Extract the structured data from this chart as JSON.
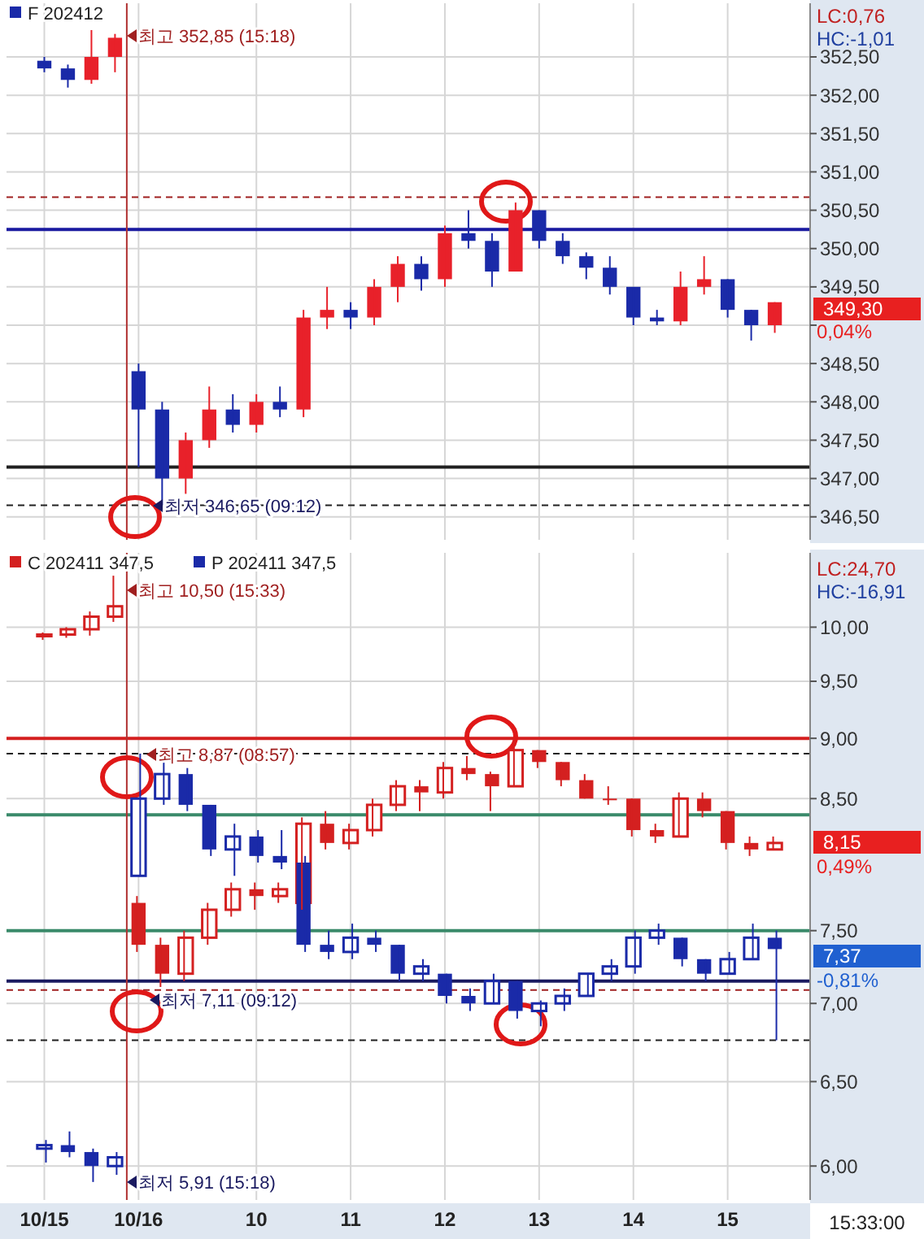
{
  "chart_data": [
    {
      "type": "candlestick",
      "categories": [
        "10/15",
        null,
        null,
        null,
        "10/16",
        null,
        null,
        null,
        null,
        "10",
        null,
        null,
        null,
        "11",
        null,
        null,
        null,
        "12",
        null,
        null,
        null,
        "13",
        null,
        null,
        null,
        "14",
        null,
        null,
        null,
        "15",
        null,
        null,
        null
      ],
      "series": [
        {
          "name": "F 202412",
          "color": "#1a2aa8",
          "colors": [
            "#1a2aa8",
            "#1a2aa8",
            "#e8212a",
            "#e8212a",
            "#1a2aa8",
            "#1a2aa8",
            "#e8212a",
            "#e8212a",
            "#1a2aa8",
            "#e8212a",
            "#1a2aa8",
            "#e8212a",
            "#e8212a",
            "#1a2aa8",
            "#e8212a",
            "#e8212a",
            "#1a2aa8",
            "#e8212a",
            "#1a2aa8",
            "#1a2aa8",
            "#e8212a",
            "#1a2aa8",
            "#1a2aa8",
            "#1a2aa8",
            "#1a2aa8",
            "#1a2aa8",
            "#1a2aa8",
            "#e8212a",
            "#e8212a",
            "#1a2aa8",
            "#1a2aa8",
            "#e8212a",
            null
          ],
          "ohlc": [
            [
              352.45,
              352.5,
              352.3,
              352.35
            ],
            [
              352.35,
              352.4,
              352.1,
              352.2
            ],
            [
              352.2,
              352.85,
              352.15,
              352.5
            ],
            [
              352.5,
              352.8,
              352.3,
              352.75
            ],
            [
              348.4,
              348.5,
              347.15,
              347.9
            ],
            [
              347.9,
              348.0,
              346.65,
              347.0
            ],
            [
              347.0,
              347.6,
              346.8,
              347.5
            ],
            [
              347.5,
              348.2,
              347.4,
              347.9
            ],
            [
              347.9,
              348.1,
              347.6,
              347.7
            ],
            [
              347.7,
              348.1,
              347.6,
              348.0
            ],
            [
              348.0,
              348.2,
              347.8,
              347.9
            ],
            [
              347.9,
              349.2,
              347.8,
              349.1
            ],
            [
              349.1,
              349.5,
              348.95,
              349.2
            ],
            [
              349.2,
              349.3,
              348.95,
              349.1
            ],
            [
              349.1,
              349.6,
              349.0,
              349.5
            ],
            [
              349.5,
              349.9,
              349.3,
              349.8
            ],
            [
              349.8,
              349.9,
              349.45,
              349.6
            ],
            [
              349.6,
              350.3,
              349.5,
              350.2
            ],
            [
              350.2,
              350.5,
              350.0,
              350.1
            ],
            [
              350.1,
              350.2,
              349.5,
              349.7
            ],
            [
              349.7,
              350.6,
              349.7,
              350.5
            ],
            [
              350.5,
              350.5,
              350.0,
              350.1
            ],
            [
              350.1,
              350.2,
              349.8,
              349.9
            ],
            [
              349.9,
              349.95,
              349.6,
              349.75
            ],
            [
              349.75,
              349.9,
              349.4,
              349.5
            ],
            [
              349.5,
              349.5,
              349.0,
              349.1
            ],
            [
              349.1,
              349.2,
              349.0,
              349.05
            ],
            [
              349.05,
              349.7,
              349.0,
              349.5
            ],
            [
              349.5,
              349.9,
              349.4,
              349.6
            ],
            [
              349.6,
              349.6,
              349.1,
              349.2
            ],
            [
              349.2,
              349.2,
              348.8,
              349.0
            ],
            [
              349.0,
              349.3,
              348.9,
              349.3
            ],
            null
          ]
        }
      ],
      "ylim": [
        346.2,
        353.2
      ],
      "yticks": [
        {
          "value": 346.5,
          "label": "346,50"
        },
        {
          "value": 347,
          "label": "347,00"
        },
        {
          "value": 347.5,
          "label": "347,50"
        },
        {
          "value": 348,
          "label": "348,00"
        },
        {
          "value": 348.5,
          "label": "348,50"
        },
        {
          "value": 349,
          "label": null
        },
        {
          "value": 349.5,
          "label": "349,50"
        },
        {
          "value": 350,
          "label": "350,00"
        },
        {
          "value": 350.5,
          "label": "350,50"
        },
        {
          "value": 351,
          "label": "351,00"
        },
        {
          "value": 351.5,
          "label": "351,50"
        },
        {
          "value": 352,
          "label": "352,00"
        },
        {
          "value": 352.5,
          "label": "352,50"
        }
      ],
      "tick_labels": "y",
      "grid": true,
      "legend": "top left",
      "ref_lines": [
        {
          "axis": "y",
          "value": 350.25,
          "color": "#1a1aa0"
        },
        {
          "axis": "y",
          "value": 350.67,
          "color": "#a02020",
          "line_style": "dashed"
        },
        {
          "axis": "y",
          "value": 347.15,
          "color": "#202020"
        },
        {
          "axis": "y",
          "value": 346.65,
          "color": "#202020",
          "line_style": "dashed"
        },
        {
          "axis": "x",
          "value": "10/16",
          "color": "#b03030"
        }
      ],
      "annotations": [
        "최고 352,85 (15:18)",
        "최저 346,65 (09:12)",
        "LC:0,76",
        "HC:-1,01",
        "349,30",
        "0,04%"
      ]
    },
    {
      "type": "candlestick",
      "categories": [
        "10/15",
        null,
        null,
        null,
        "10/16",
        null,
        null,
        null,
        null,
        "10",
        null,
        null,
        null,
        "11",
        null,
        null,
        null,
        "12",
        null,
        null,
        null,
        "13",
        null,
        null,
        null,
        "14",
        null,
        null,
        null,
        "15",
        null,
        null,
        null
      ],
      "series": [
        {
          "name": "C 202411 347,5",
          "color": "#d42020",
          "ohlc": [
            [
              9.92,
              9.95,
              9.88,
              9.93
            ],
            [
              9.93,
              10.0,
              9.9,
              9.98
            ],
            [
              9.98,
              10.15,
              9.92,
              10.1
            ],
            [
              10.1,
              10.5,
              10.05,
              10.2
            ],
            [
              7.7,
              7.75,
              7.35,
              7.4
            ],
            [
              7.4,
              7.45,
              7.11,
              7.2
            ],
            [
              7.2,
              7.5,
              7.15,
              7.45
            ],
            [
              7.45,
              7.7,
              7.4,
              7.65
            ],
            [
              7.65,
              7.85,
              7.6,
              7.8
            ],
            [
              7.8,
              7.85,
              7.65,
              7.75
            ],
            [
              7.75,
              7.85,
              7.7,
              7.8
            ],
            [
              7.7,
              8.35,
              7.65,
              8.3
            ],
            [
              8.3,
              8.4,
              8.1,
              8.15
            ],
            [
              8.15,
              8.3,
              8.1,
              8.25
            ],
            [
              8.25,
              8.5,
              8.2,
              8.45
            ],
            [
              8.45,
              8.65,
              8.4,
              8.6
            ],
            [
              8.6,
              8.65,
              8.4,
              8.55
            ],
            [
              8.55,
              8.8,
              8.5,
              8.75
            ],
            [
              8.75,
              8.85,
              8.65,
              8.7
            ],
            [
              8.7,
              8.72,
              8.4,
              8.6
            ],
            [
              8.6,
              9.0,
              8.6,
              8.9
            ],
            [
              8.9,
              8.9,
              8.75,
              8.8
            ],
            [
              8.8,
              8.8,
              8.6,
              8.65
            ],
            [
              8.65,
              8.7,
              8.5,
              8.5
            ],
            [
              8.5,
              8.6,
              8.45,
              8.5
            ],
            [
              8.5,
              8.5,
              8.2,
              8.25
            ],
            [
              8.25,
              8.3,
              8.15,
              8.2
            ],
            [
              8.2,
              8.55,
              8.2,
              8.5
            ],
            [
              8.5,
              8.55,
              8.35,
              8.4
            ],
            [
              8.4,
              8.4,
              8.1,
              8.15
            ],
            [
              8.15,
              8.2,
              8.05,
              8.1
            ],
            [
              8.1,
              8.2,
              8.1,
              8.15
            ],
            null
          ]
        },
        {
          "name": "P 202411 347,5",
          "color": "#1a2aa8",
          "ohlc": [
            [
              6.1,
              6.15,
              6.02,
              6.12
            ],
            [
              6.12,
              6.2,
              6.05,
              6.08
            ],
            [
              6.08,
              6.1,
              5.91,
              6.0
            ],
            [
              6.0,
              6.08,
              5.95,
              6.05
            ],
            [
              7.9,
              8.87,
              7.9,
              8.5
            ],
            [
              8.5,
              8.8,
              8.45,
              8.7
            ],
            [
              8.7,
              8.75,
              8.4,
              8.45
            ],
            [
              8.45,
              8.45,
              8.05,
              8.1
            ],
            [
              8.1,
              8.3,
              7.9,
              8.2
            ],
            [
              8.2,
              8.25,
              8.0,
              8.05
            ],
            [
              8.05,
              8.25,
              7.95,
              8.0
            ],
            [
              8.0,
              8.05,
              7.35,
              7.4
            ],
            [
              7.4,
              7.5,
              7.3,
              7.35
            ],
            [
              7.35,
              7.55,
              7.3,
              7.45
            ],
            [
              7.45,
              7.5,
              7.35,
              7.4
            ],
            [
              7.4,
              7.4,
              7.15,
              7.2
            ],
            [
              7.2,
              7.3,
              7.15,
              7.25
            ],
            [
              7.2,
              7.2,
              7.0,
              7.05
            ],
            [
              7.05,
              7.1,
              6.95,
              7.0
            ],
            [
              7.0,
              7.2,
              7.0,
              7.15
            ],
            [
              7.15,
              7.15,
              6.9,
              6.95
            ],
            [
              6.95,
              7.02,
              6.85,
              7.0
            ],
            [
              7.0,
              7.1,
              6.95,
              7.05
            ],
            [
              7.05,
              7.2,
              7.05,
              7.2
            ],
            [
              7.2,
              7.3,
              7.15,
              7.25
            ],
            [
              7.25,
              7.5,
              7.2,
              7.45
            ],
            [
              7.45,
              7.55,
              7.4,
              7.5
            ],
            [
              7.45,
              7.45,
              7.25,
              7.3
            ],
            [
              7.3,
              7.3,
              7.15,
              7.2
            ],
            [
              7.2,
              7.35,
              7.2,
              7.3
            ],
            [
              7.3,
              7.55,
              7.3,
              7.45
            ],
            [
              7.45,
              7.5,
              6.76,
              7.37
            ],
            null
          ]
        }
      ],
      "ylim": [
        5.81,
        10.73
      ],
      "log": true,
      "yticks": [
        {
          "value": 6,
          "label": "6,00"
        },
        {
          "value": 6.5,
          "label": "6,50"
        },
        {
          "value": 7,
          "label": "7,00"
        },
        {
          "value": 7.5,
          "label": "7,50"
        },
        {
          "value": 8.5,
          "label": "8,50"
        },
        {
          "value": 9,
          "label": "9,00"
        },
        {
          "value": 9.5,
          "label": "9,50"
        },
        {
          "value": 10,
          "label": "10,00"
        }
      ],
      "grid": true,
      "legend": "top left",
      "ref_lines": [
        {
          "axis": "y",
          "value": 9.0,
          "color": "#d42020"
        },
        {
          "axis": "y",
          "value": 8.87,
          "color": "#202020",
          "line_style": "dashed"
        },
        {
          "axis": "y",
          "value": 8.37,
          "color": "#3a8a6a"
        },
        {
          "axis": "y",
          "value": 7.5,
          "color": "#3a8a6a"
        },
        {
          "axis": "y",
          "value": 7.15,
          "color": "#1a1a60"
        },
        {
          "axis": "y",
          "value": 7.09,
          "color": "#a02020",
          "line_style": "dashed"
        },
        {
          "axis": "y",
          "value": 6.76,
          "color": "#202020",
          "line_style": "dashed"
        },
        {
          "axis": "x",
          "value": "10/16",
          "color": "#b03030"
        }
      ],
      "annotations": [
        "최고 10,50 (15:33)",
        "최고 8,87 (08:57)",
        "최저 7,11 (09:12)",
        "최저 5,91 (15:18)",
        "LC:24,70",
        "HC:-16,91",
        "8,15",
        "0,49%",
        "7,37",
        "-0,81%",
        "15:33:00"
      ]
    }
  ]
}
